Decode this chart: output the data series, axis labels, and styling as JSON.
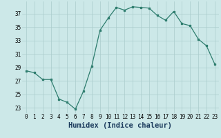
{
  "x": [
    0,
    1,
    2,
    3,
    4,
    5,
    6,
    7,
    8,
    9,
    10,
    11,
    12,
    13,
    14,
    15,
    16,
    17,
    18,
    19,
    20,
    21,
    22,
    23
  ],
  "y": [
    28.5,
    28.2,
    27.2,
    27.2,
    24.3,
    23.8,
    22.8,
    25.5,
    29.2,
    34.5,
    36.3,
    37.9,
    37.5,
    38.0,
    37.9,
    37.8,
    36.7,
    36.0,
    37.3,
    35.5,
    35.2,
    33.2,
    32.2,
    29.5
  ],
  "line_color": "#2e7d6e",
  "marker": "s",
  "markersize": 2.0,
  "linewidth": 0.9,
  "xlabel": "Humidex (Indice chaleur)",
  "xlabel_fontsize": 7.5,
  "ytick_labels": [
    "23",
    "25",
    "27",
    "29",
    "31",
    "33",
    "35",
    "37"
  ],
  "ytick_vals": [
    23,
    25,
    27,
    29,
    31,
    33,
    35,
    37
  ],
  "xlim": [
    -0.5,
    23.5
  ],
  "ylim": [
    22.2,
    38.8
  ],
  "bg_color": "#cce8e8",
  "grid_color": "#aacccc",
  "tick_fontsize": 5.5
}
